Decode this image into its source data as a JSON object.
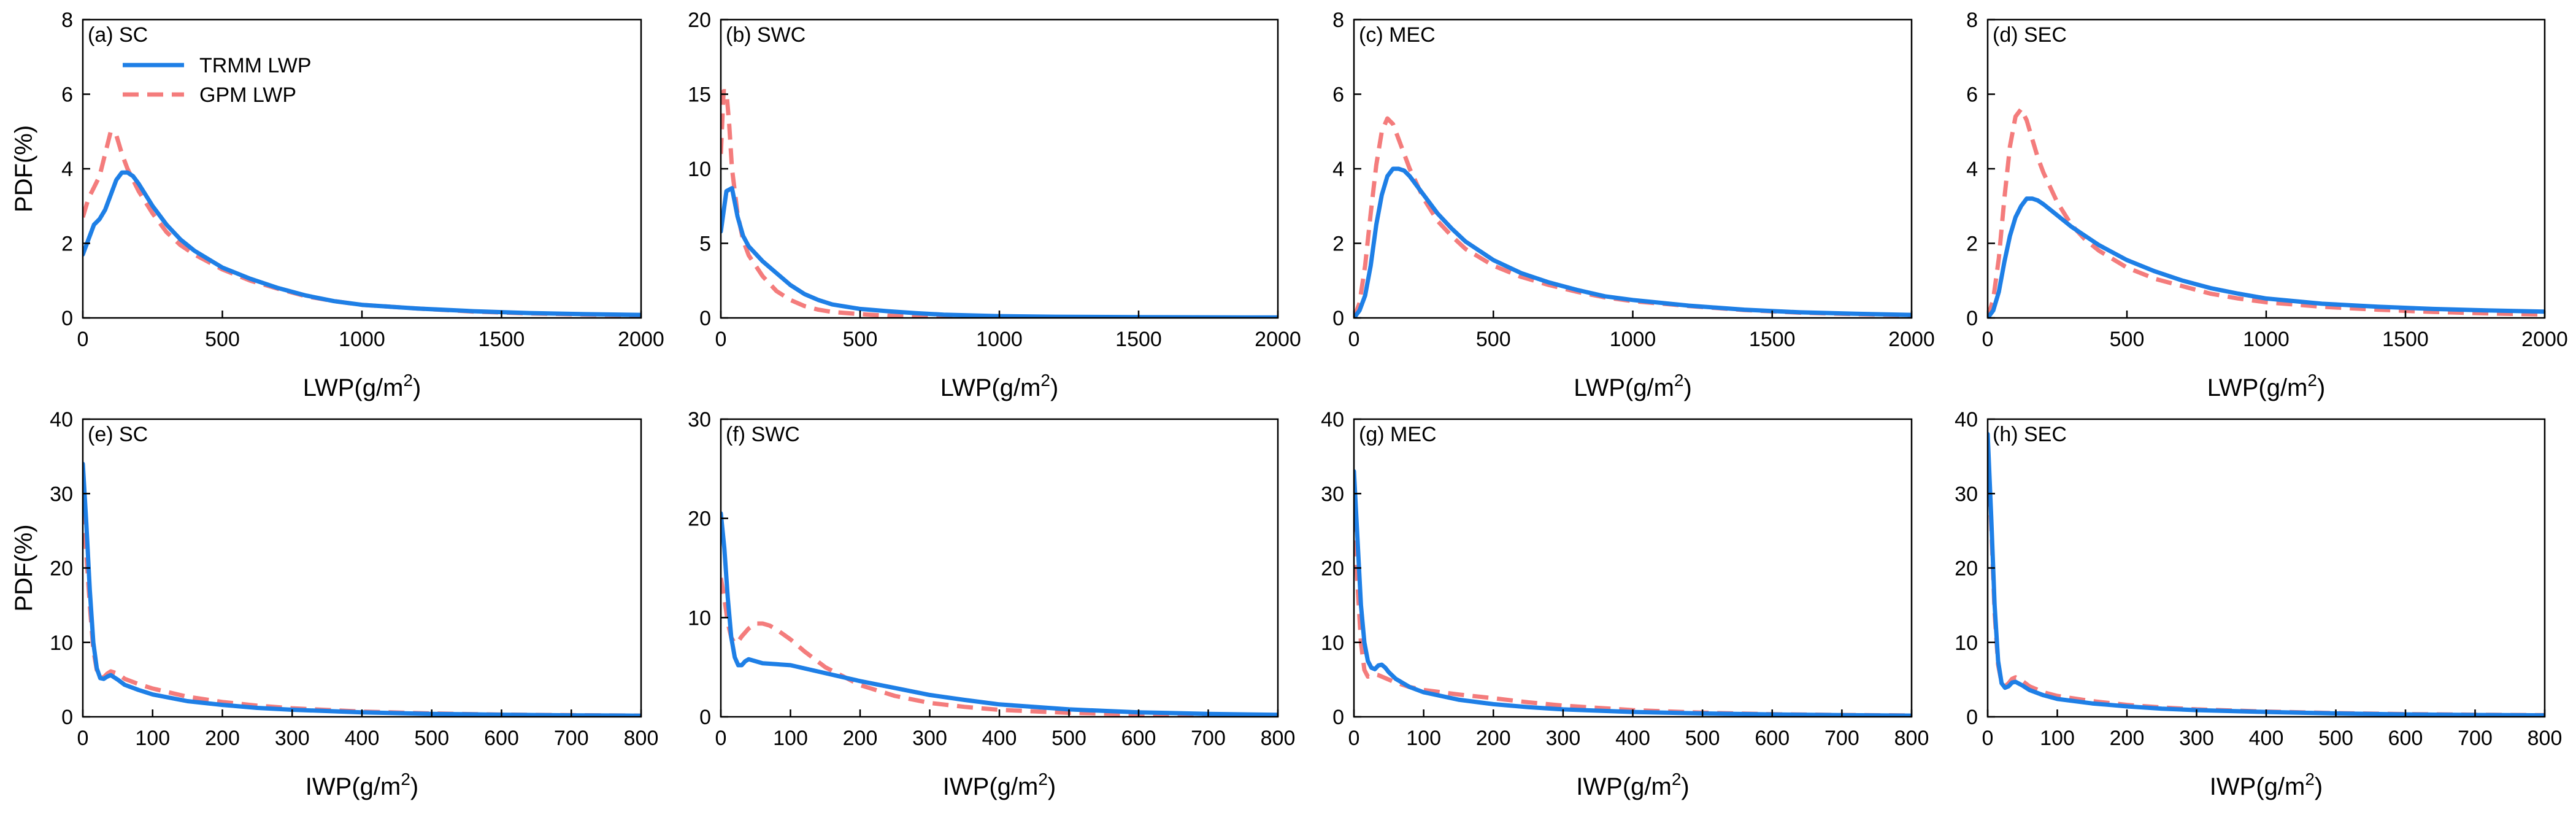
{
  "legend": {
    "entries": [
      {
        "label": "TRMM LWP",
        "color": "#1E7FE6",
        "dash": "solid"
      },
      {
        "label": "GPM LWP",
        "color": "#F47C7C",
        "dash": "dashed"
      }
    ],
    "placement": "top-left of panel (a)"
  },
  "chart_data": [
    {
      "type": "line",
      "panel_label": "(a) SC",
      "xlabel": "LWP(g/m",
      "xlabel_sup": "2",
      "xlabel_close": ")",
      "ylabel": "PDF(%)",
      "xlim": [
        0,
        2000
      ],
      "ylim": [
        0,
        8
      ],
      "xticks": [
        0,
        500,
        1000,
        1500,
        2000
      ],
      "yticks": [
        0,
        2,
        4,
        6,
        8
      ],
      "series": [
        {
          "name": "TRMM LWP",
          "x": [
            0,
            20,
            40,
            60,
            80,
            100,
            120,
            140,
            160,
            180,
            200,
            250,
            300,
            350,
            400,
            500,
            600,
            700,
            800,
            900,
            1000,
            1200,
            1400,
            1600,
            1800,
            2000
          ],
          "y": [
            1.7,
            2.1,
            2.5,
            2.65,
            2.9,
            3.3,
            3.7,
            3.9,
            3.9,
            3.8,
            3.6,
            3.0,
            2.5,
            2.1,
            1.8,
            1.35,
            1.05,
            0.8,
            0.6,
            0.45,
            0.35,
            0.25,
            0.18,
            0.13,
            0.1,
            0.08
          ]
        },
        {
          "name": "GPM LWP",
          "x": [
            0,
            20,
            40,
            60,
            80,
            100,
            120,
            140,
            160,
            180,
            200,
            250,
            300,
            350,
            400,
            500,
            600,
            700,
            800,
            900,
            1000,
            1200,
            1400,
            1600,
            1800,
            2000
          ],
          "y": [
            2.7,
            3.2,
            3.5,
            3.8,
            4.4,
            5.0,
            4.9,
            4.4,
            4.0,
            3.7,
            3.4,
            2.8,
            2.3,
            1.95,
            1.7,
            1.3,
            1.0,
            0.78,
            0.58,
            0.45,
            0.35,
            0.25,
            0.17,
            0.12,
            0.09,
            0.07
          ]
        }
      ]
    },
    {
      "type": "line",
      "panel_label": "(b) SWC",
      "xlabel": "LWP(g/m",
      "xlabel_sup": "2",
      "xlabel_close": ")",
      "ylabel": "",
      "xlim": [
        0,
        2000
      ],
      "ylim": [
        0,
        20
      ],
      "xticks": [
        0,
        500,
        1000,
        1500,
        2000
      ],
      "yticks": [
        0,
        5,
        10,
        15,
        20
      ],
      "series": [
        {
          "name": "TRMM LWP",
          "x": [
            0,
            20,
            40,
            60,
            80,
            100,
            150,
            200,
            250,
            300,
            350,
            400,
            500,
            600,
            700,
            800,
            1000,
            1200,
            1500,
            2000
          ],
          "y": [
            5.8,
            8.5,
            8.7,
            6.8,
            5.5,
            4.8,
            3.8,
            3.0,
            2.2,
            1.6,
            1.2,
            0.9,
            0.6,
            0.45,
            0.32,
            0.22,
            0.12,
            0.08,
            0.05,
            0.03
          ]
        },
        {
          "name": "GPM LWP",
          "x": [
            0,
            10,
            20,
            30,
            40,
            60,
            80,
            100,
            150,
            200,
            250,
            300,
            350,
            400,
            500,
            600,
            700,
            800,
            1000,
            1200,
            1500,
            2000
          ],
          "y": [
            11,
            15.2,
            15.2,
            13,
            10,
            7,
            5.2,
            4.2,
            2.8,
            1.8,
            1.2,
            0.8,
            0.55,
            0.4,
            0.25,
            0.15,
            0.1,
            0.07,
            0.04,
            0.03,
            0.02,
            0.01
          ]
        }
      ]
    },
    {
      "type": "line",
      "panel_label": "(c) MEC",
      "xlabel": "LWP(g/m",
      "xlabel_sup": "2",
      "xlabel_close": ")",
      "ylabel": "",
      "xlim": [
        0,
        2000
      ],
      "ylim": [
        0,
        8
      ],
      "xticks": [
        0,
        500,
        1000,
        1500,
        2000
      ],
      "yticks": [
        0,
        2,
        4,
        6,
        8
      ],
      "series": [
        {
          "name": "TRMM LWP",
          "x": [
            0,
            20,
            40,
            60,
            80,
            100,
            120,
            140,
            160,
            180,
            200,
            250,
            300,
            350,
            400,
            500,
            600,
            700,
            800,
            900,
            1000,
            1200,
            1400,
            1600,
            1800,
            2000
          ],
          "y": [
            0,
            0.2,
            0.6,
            1.4,
            2.5,
            3.3,
            3.8,
            4.0,
            4.0,
            3.95,
            3.8,
            3.3,
            2.8,
            2.4,
            2.05,
            1.55,
            1.2,
            0.95,
            0.75,
            0.58,
            0.48,
            0.33,
            0.22,
            0.15,
            0.11,
            0.08
          ]
        },
        {
          "name": "GPM LWP",
          "x": [
            0,
            20,
            40,
            60,
            80,
            100,
            120,
            140,
            160,
            180,
            200,
            250,
            300,
            350,
            400,
            500,
            600,
            700,
            800,
            900,
            1000,
            1200,
            1400,
            1600,
            1800,
            2000
          ],
          "y": [
            0,
            0.4,
            1.4,
            2.8,
            4.1,
            5.0,
            5.35,
            5.2,
            4.8,
            4.4,
            4.0,
            3.2,
            2.6,
            2.2,
            1.85,
            1.4,
            1.1,
            0.88,
            0.7,
            0.55,
            0.45,
            0.32,
            0.21,
            0.14,
            0.1,
            0.07
          ]
        }
      ]
    },
    {
      "type": "line",
      "panel_label": "(d) SEC",
      "xlabel": "LWP(g/m",
      "xlabel_sup": "2",
      "xlabel_close": ")",
      "ylabel": "",
      "xlim": [
        0,
        2000
      ],
      "ylim": [
        0,
        8
      ],
      "xticks": [
        0,
        500,
        1000,
        1500,
        2000
      ],
      "yticks": [
        0,
        2,
        4,
        6,
        8
      ],
      "series": [
        {
          "name": "TRMM LWP",
          "x": [
            0,
            20,
            40,
            60,
            80,
            100,
            120,
            140,
            160,
            180,
            200,
            250,
            300,
            350,
            400,
            500,
            600,
            700,
            800,
            900,
            1000,
            1200,
            1400,
            1600,
            1800,
            2000
          ],
          "y": [
            0,
            0.2,
            0.7,
            1.5,
            2.2,
            2.7,
            3.0,
            3.2,
            3.2,
            3.15,
            3.05,
            2.75,
            2.45,
            2.2,
            1.95,
            1.55,
            1.25,
            1.0,
            0.8,
            0.65,
            0.52,
            0.38,
            0.3,
            0.24,
            0.2,
            0.17
          ]
        },
        {
          "name": "GPM LWP",
          "x": [
            0,
            20,
            40,
            60,
            80,
            100,
            120,
            140,
            160,
            180,
            200,
            250,
            300,
            350,
            400,
            500,
            600,
            700,
            800,
            900,
            1000,
            1200,
            1400,
            1600,
            1800,
            2000
          ],
          "y": [
            0,
            0.5,
            1.6,
            3.2,
            4.6,
            5.4,
            5.6,
            5.3,
            4.8,
            4.3,
            3.9,
            3.1,
            2.5,
            2.1,
            1.8,
            1.35,
            1.05,
            0.85,
            0.65,
            0.52,
            0.42,
            0.3,
            0.22,
            0.16,
            0.12,
            0.09
          ]
        }
      ]
    },
    {
      "type": "line",
      "panel_label": "(e) SC",
      "xlabel": "IWP(g/m",
      "xlabel_sup": "2",
      "xlabel_close": ")",
      "ylabel": "PDF(%)",
      "xlim": [
        0,
        800
      ],
      "ylim": [
        0,
        40
      ],
      "xticks": [
        0,
        100,
        200,
        300,
        400,
        500,
        600,
        700,
        800
      ],
      "yticks": [
        0,
        10,
        20,
        30,
        40
      ],
      "series": [
        {
          "name": "TRMM LWP",
          "x": [
            0,
            5,
            10,
            15,
            20,
            25,
            30,
            35,
            40,
            50,
            60,
            80,
            100,
            150,
            200,
            250,
            300,
            400,
            500,
            600,
            700,
            800
          ],
          "y": [
            34,
            26,
            17,
            10,
            6.5,
            5.2,
            5.1,
            5.4,
            5.6,
            5.0,
            4.3,
            3.6,
            3.0,
            2.1,
            1.6,
            1.2,
            0.95,
            0.6,
            0.4,
            0.28,
            0.2,
            0.15
          ]
        },
        {
          "name": "GPM LWP",
          "x": [
            0,
            5,
            10,
            15,
            20,
            25,
            30,
            35,
            40,
            50,
            60,
            80,
            100,
            150,
            200,
            250,
            300,
            400,
            500,
            600,
            700,
            800
          ],
          "y": [
            28,
            22,
            15,
            9,
            6.3,
            5.3,
            5.3,
            5.8,
            6.1,
            5.8,
            5.1,
            4.4,
            3.8,
            2.7,
            2.0,
            1.5,
            1.15,
            0.7,
            0.45,
            0.3,
            0.22,
            0.16
          ]
        }
      ]
    },
    {
      "type": "line",
      "panel_label": "(f) SWC",
      "xlabel": "IWP(g/m",
      "xlabel_sup": "2",
      "xlabel_close": ")",
      "ylabel": "",
      "xlim": [
        0,
        800
      ],
      "ylim": [
        0,
        30
      ],
      "xticks": [
        0,
        100,
        200,
        300,
        400,
        500,
        600,
        700,
        800
      ],
      "yticks": [
        0,
        10,
        20,
        30
      ],
      "series": [
        {
          "name": "TRMM LWP",
          "x": [
            0,
            5,
            10,
            15,
            20,
            25,
            30,
            35,
            40,
            50,
            60,
            80,
            100,
            150,
            200,
            250,
            300,
            350,
            400,
            500,
            600,
            700,
            800
          ],
          "y": [
            20.5,
            17,
            12,
            8,
            6,
            5.2,
            5.2,
            5.6,
            5.8,
            5.6,
            5.4,
            5.3,
            5.2,
            4.4,
            3.6,
            2.9,
            2.2,
            1.7,
            1.25,
            0.75,
            0.45,
            0.3,
            0.2
          ]
        },
        {
          "name": "GPM LWP",
          "x": [
            0,
            5,
            10,
            15,
            20,
            25,
            30,
            40,
            50,
            60,
            70,
            80,
            100,
            120,
            150,
            200,
            250,
            300,
            350,
            400,
            500,
            600,
            700,
            800
          ],
          "y": [
            14,
            12,
            9.5,
            8,
            7.4,
            7.6,
            8.1,
            8.9,
            9.4,
            9.4,
            9.2,
            8.8,
            7.8,
            6.6,
            5.0,
            3.2,
            2.1,
            1.4,
            1.0,
            0.7,
            0.4,
            0.25,
            0.15,
            0.1
          ]
        }
      ]
    },
    {
      "type": "line",
      "panel_label": "(g) MEC",
      "xlabel": "IWP(g/m",
      "xlabel_sup": "2",
      "xlabel_close": ")",
      "ylabel": "",
      "xlim": [
        0,
        800
      ],
      "ylim": [
        0,
        40
      ],
      "xticks": [
        0,
        100,
        200,
        300,
        400,
        500,
        600,
        700,
        800
      ],
      "yticks": [
        0,
        10,
        20,
        30,
        40
      ],
      "series": [
        {
          "name": "TRMM LWP",
          "x": [
            0,
            5,
            10,
            15,
            20,
            25,
            30,
            35,
            40,
            45,
            50,
            60,
            80,
            100,
            150,
            200,
            250,
            300,
            400,
            500,
            600,
            700,
            800
          ],
          "y": [
            33,
            24,
            15,
            10,
            7.5,
            6.6,
            6.4,
            6.9,
            7.0,
            6.6,
            6.0,
            5.1,
            4.0,
            3.3,
            2.3,
            1.7,
            1.3,
            1.0,
            0.65,
            0.45,
            0.32,
            0.22,
            0.16
          ]
        },
        {
          "name": "GPM LWP",
          "x": [
            0,
            5,
            10,
            15,
            20,
            25,
            30,
            35,
            40,
            50,
            60,
            80,
            100,
            150,
            200,
            250,
            300,
            400,
            500,
            600,
            700,
            800
          ],
          "y": [
            27,
            18,
            10,
            6.3,
            5.4,
            5.5,
            5.7,
            5.6,
            5.4,
            5.0,
            4.6,
            4.0,
            3.6,
            3.0,
            2.5,
            1.95,
            1.5,
            0.9,
            0.55,
            0.35,
            0.25,
            0.18
          ]
        }
      ]
    },
    {
      "type": "line",
      "panel_label": "(h) SEC",
      "xlabel": "IWP(g/m",
      "xlabel_sup": "2",
      "xlabel_close": ")",
      "ylabel": "",
      "xlim": [
        0,
        800
      ],
      "ylim": [
        0,
        40
      ],
      "xticks": [
        0,
        100,
        200,
        300,
        400,
        500,
        600,
        700,
        800
      ],
      "yticks": [
        0,
        10,
        20,
        30,
        40
      ],
      "series": [
        {
          "name": "TRMM LWP",
          "x": [
            0,
            5,
            10,
            15,
            20,
            25,
            30,
            35,
            40,
            50,
            60,
            80,
            100,
            150,
            200,
            250,
            300,
            400,
            500,
            600,
            700,
            800
          ],
          "y": [
            38,
            27,
            15,
            7.5,
            4.5,
            3.9,
            4.1,
            4.6,
            4.7,
            4.2,
            3.6,
            2.9,
            2.4,
            1.8,
            1.4,
            1.1,
            0.9,
            0.65,
            0.45,
            0.32,
            0.25,
            0.2
          ]
        },
        {
          "name": "GPM LWP",
          "x": [
            0,
            5,
            10,
            15,
            20,
            25,
            30,
            35,
            40,
            50,
            60,
            80,
            100,
            150,
            200,
            250,
            300,
            400,
            500,
            600,
            700,
            800
          ],
          "y": [
            37,
            26,
            14,
            7,
            4.6,
            4.1,
            4.5,
            5.1,
            5.3,
            4.8,
            4.1,
            3.3,
            2.8,
            2.1,
            1.6,
            1.25,
            1.0,
            0.7,
            0.5,
            0.36,
            0.28,
            0.22
          ]
        }
      ]
    }
  ]
}
